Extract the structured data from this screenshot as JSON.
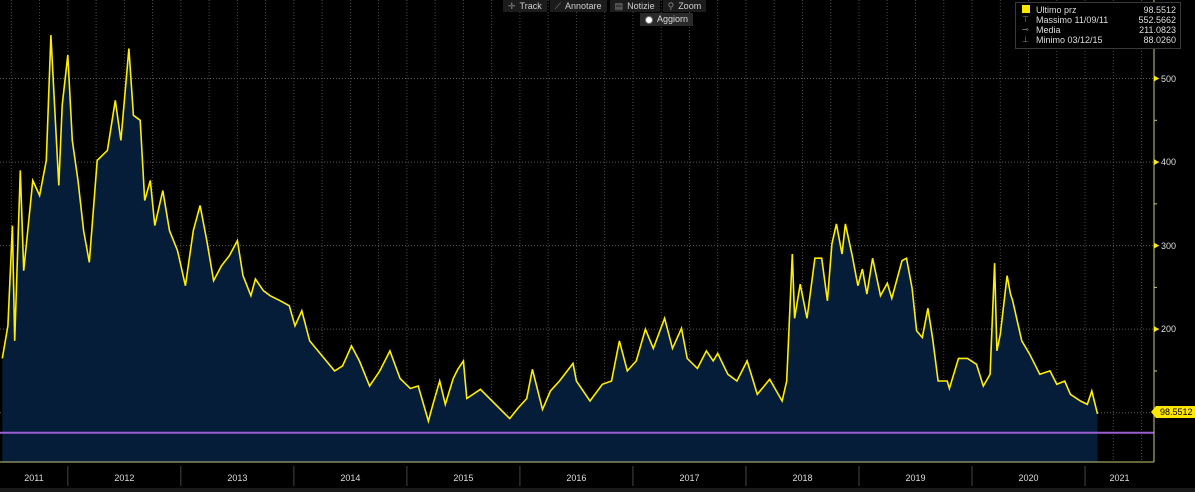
{
  "toolbar": {
    "track": "Track",
    "annotate": "Annotare",
    "news": "Notizie",
    "zoom": "Zoom",
    "refresh": "Aggiorn"
  },
  "legend": {
    "last": {
      "label": "Ultimo prz",
      "value": "98.5512"
    },
    "max": {
      "label": "Massimo 11/09/11",
      "value": "552.5662"
    },
    "avg": {
      "label": "Media",
      "value": "211.0823"
    },
    "min": {
      "label": "Minimo 03/12/15",
      "value": "88.0260"
    }
  },
  "price_tag": "98.5512",
  "colors": {
    "line": "#ffee00",
    "area": "#061d3a",
    "reference_line": "#9a5fd0",
    "axis": "#c8c87a"
  },
  "chart_data": {
    "type": "area",
    "title": "",
    "xlabel": "",
    "ylabel": "",
    "xlim": [
      2011.4,
      2021.61
    ],
    "ylim": [
      41,
      594
    ],
    "grid": true,
    "legend_placement": "top-right",
    "x_ticks": [
      "2011",
      "2012",
      "2013",
      "2014",
      "2015",
      "2016",
      "2017",
      "2018",
      "2019",
      "2020",
      "2021"
    ],
    "y_ticks": [
      200,
      300,
      400,
      500
    ],
    "reference_line": 76,
    "series": [
      {
        "name": "Ultimo prz",
        "x": [
          2011.42,
          2011.47,
          2011.51,
          2011.53,
          2011.58,
          2011.61,
          2011.69,
          2011.75,
          2011.81,
          2011.85,
          2011.88,
          2011.92,
          2011.95,
          2012.0,
          2012.04,
          2012.09,
          2012.14,
          2012.19,
          2012.26,
          2012.35,
          2012.42,
          2012.47,
          2012.54,
          2012.58,
          2012.64,
          2012.68,
          2012.73,
          2012.77,
          2012.84,
          2012.9,
          2012.97,
          2013.04,
          2013.11,
          2013.17,
          2013.23,
          2013.29,
          2013.36,
          2013.43,
          2013.5,
          2013.55,
          2013.62,
          2013.66,
          2013.73,
          2013.79,
          2013.88,
          2013.96,
          2014.01,
          2014.07,
          2014.14,
          2014.25,
          2014.36,
          2014.43,
          2014.51,
          2014.58,
          2014.67,
          2014.76,
          2014.85,
          2014.94,
          2015.03,
          2015.1,
          2015.19,
          2015.23,
          2015.29,
          2015.34,
          2015.41,
          2015.45,
          2015.5,
          2015.53,
          2015.65,
          2015.82,
          2015.91,
          2015.98,
          2016.06,
          2016.11,
          2016.2,
          2016.27,
          2016.35,
          2016.47,
          2016.5,
          2016.62,
          2016.73,
          2016.81,
          2016.88,
          2016.95,
          2017.03,
          2017.11,
          2017.18,
          2017.28,
          2017.35,
          2017.43,
          2017.48,
          2017.57,
          2017.65,
          2017.71,
          2017.75,
          2017.84,
          2017.92,
          2018.01,
          2018.1,
          2018.21,
          2018.32,
          2018.36,
          2018.41,
          2018.43,
          2018.48,
          2018.54,
          2018.61,
          2018.67,
          2018.72,
          2018.76,
          2018.8,
          2018.85,
          2018.88,
          2018.94,
          2018.99,
          2019.03,
          2019.07,
          2019.12,
          2019.19,
          2019.25,
          2019.29,
          2019.38,
          2019.42,
          2019.47,
          2019.51,
          2019.56,
          2019.61,
          2019.65,
          2019.7,
          2019.78,
          2019.8,
          2019.88,
          2019.96,
          2020.04,
          2020.1,
          2020.16,
          2020.2,
          2020.22,
          2020.25,
          2020.31,
          2020.34,
          2020.36,
          2020.4,
          2020.44,
          2020.51,
          2020.6,
          2020.69,
          2020.75,
          2020.82,
          2020.87,
          2020.96,
          2021.02,
          2021.06,
          2021.11
        ],
        "values": [
          165,
          204,
          324,
          186,
          390,
          270,
          378,
          360,
          402,
          552,
          474,
          372,
          468,
          528,
          426,
          378,
          318,
          280,
          402,
          414,
          474,
          426,
          536,
          456,
          450,
          354,
          378,
          324,
          366,
          318,
          294,
          252,
          318,
          348,
          306,
          258,
          276,
          288,
          306,
          264,
          240,
          260,
          246,
          240,
          234,
          228,
          204,
          222,
          186,
          168,
          150,
          156,
          180,
          162,
          132,
          150,
          174,
          141,
          129,
          132,
          90,
          110,
          138,
          110,
          141,
          152,
          162,
          117,
          128,
          105,
          93,
          105,
          117,
          152,
          104,
          126,
          138,
          159,
          138,
          114,
          134,
          138,
          186,
          150,
          162,
          200,
          177,
          213,
          177,
          201,
          165,
          153,
          174,
          162,
          171,
          146,
          138,
          162,
          122,
          140,
          114,
          138,
          290,
          213,
          254,
          213,
          285,
          285,
          234,
          302,
          326,
          290,
          326,
          288,
          252,
          272,
          242,
          285,
          240,
          255,
          237,
          282,
          285,
          249,
          198,
          190,
          225,
          190,
          138,
          138,
          129,
          165,
          165,
          158,
          132,
          146,
          279,
          174,
          194,
          264,
          242,
          234,
          210,
          186,
          170,
          146,
          150,
          134,
          138,
          122,
          114,
          110,
          126,
          98.55
        ]
      }
    ]
  }
}
